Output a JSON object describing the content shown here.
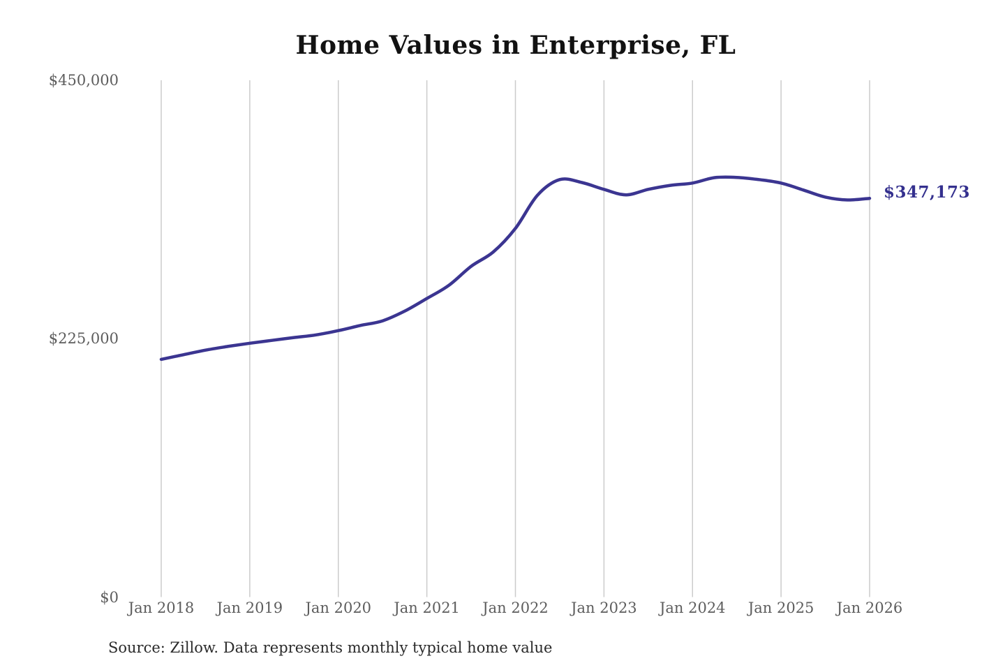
{
  "chart_data": {
    "type": "line",
    "title": "Home Values in Enterprise, FL",
    "series_name": "Monthly typical home value",
    "x": [
      "Jan 2018",
      "Apr 2018",
      "Jul 2018",
      "Oct 2018",
      "Jan 2019",
      "Apr 2019",
      "Jul 2019",
      "Oct 2019",
      "Jan 2020",
      "Apr 2020",
      "Jul 2020",
      "Oct 2020",
      "Jan 2021",
      "Apr 2021",
      "Jul 2021",
      "Oct 2021",
      "Jan 2022",
      "Apr 2022",
      "Jul 2022",
      "Oct 2022",
      "Jan 2023",
      "Apr 2023",
      "Jul 2023",
      "Oct 2023",
      "Jan 2024",
      "Apr 2024",
      "Jul 2024",
      "Oct 2024",
      "Jan 2025",
      "Apr 2025",
      "Jul 2025",
      "Oct 2025",
      "Jan 2026"
    ],
    "values": [
      207000,
      211000,
      215000,
      218200,
      221000,
      223500,
      226000,
      228300,
      232000,
      236500,
      240500,
      249000,
      260000,
      271500,
      288000,
      300500,
      321000,
      350000,
      363500,
      361000,
      355000,
      350200,
      355000,
      358500,
      360500,
      365200,
      365400,
      363500,
      360500,
      354500,
      348300,
      345800,
      347173
    ],
    "final_value": 347173,
    "end_label": "$347,173",
    "x_tick_labels": [
      "Jan 2018",
      "Jan 2019",
      "Jan 2020",
      "Jan 2021",
      "Jan 2022",
      "Jan 2023",
      "Jan 2024",
      "Jan 2025",
      "Jan 2026"
    ],
    "y_ticks": [
      {
        "label": "$0",
        "value": 0
      },
      {
        "label": "$225,000",
        "value": 225000
      },
      {
        "label": "$450,000",
        "value": 450000
      }
    ],
    "ylim": [
      0,
      450000
    ],
    "grid": "vertical-only",
    "legend": "none",
    "source_note": "Source: Zillow. Data represents monthly typical home value",
    "colors": {
      "line": "#3b3591",
      "end_label": "#34308e",
      "gridline": "#cbcbcb",
      "axis_label": "#5d5d5d",
      "title": "#121212",
      "source": "#2a2a2a",
      "background": "#ffffff"
    }
  }
}
